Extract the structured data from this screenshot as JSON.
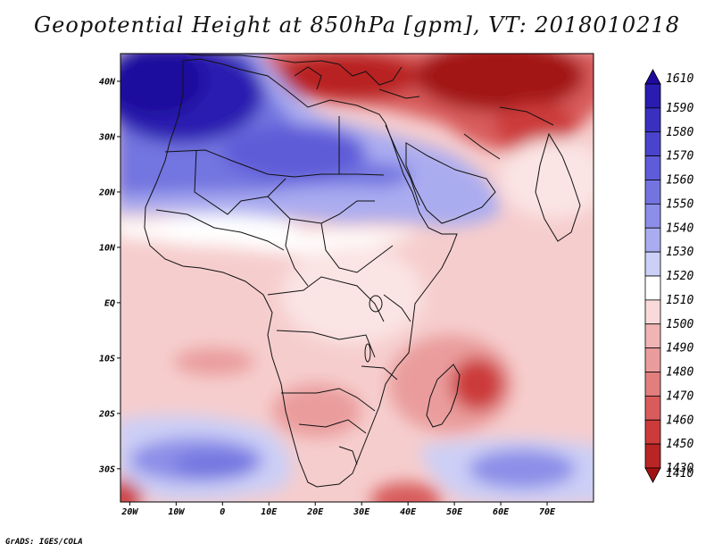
{
  "title": "Geopotential Height at 850hPa [gpm], VT: 2018010218",
  "credit": "GrADS: IGES/COLA",
  "map": {
    "region": "Africa",
    "projection": "lat-lon",
    "lon_range": [
      -22,
      80
    ],
    "lat_range": [
      -36,
      45
    ]
  },
  "axes": {
    "lat_ticks": [
      {
        "value": 40,
        "label": "40N"
      },
      {
        "value": 30,
        "label": "30N"
      },
      {
        "value": 20,
        "label": "20N"
      },
      {
        "value": 10,
        "label": "10N"
      },
      {
        "value": 0,
        "label": "EQ"
      },
      {
        "value": -10,
        "label": "10S"
      },
      {
        "value": -20,
        "label": "20S"
      },
      {
        "value": -30,
        "label": "30S"
      }
    ],
    "lon_ticks": [
      {
        "value": -20,
        "label": "20W"
      },
      {
        "value": -10,
        "label": "10W"
      },
      {
        "value": 0,
        "label": "0"
      },
      {
        "value": 10,
        "label": "10E"
      },
      {
        "value": 20,
        "label": "20E"
      },
      {
        "value": 30,
        "label": "30E"
      },
      {
        "value": 40,
        "label": "40E"
      },
      {
        "value": 50,
        "label": "50E"
      },
      {
        "value": 60,
        "label": "60E"
      },
      {
        "value": 70,
        "label": "70E"
      }
    ]
  },
  "colorbar": {
    "levels": [
      {
        "label": "1610",
        "color": "#1e0a9e"
      },
      {
        "label": "1590",
        "color": "#2a1cb0"
      },
      {
        "label": "1580",
        "color": "#3a30c0"
      },
      {
        "label": "1570",
        "color": "#4a44cc"
      },
      {
        "label": "1560",
        "color": "#5e5cd8"
      },
      {
        "label": "1550",
        "color": "#7374e0"
      },
      {
        "label": "1540",
        "color": "#8c8ee8"
      },
      {
        "label": "1530",
        "color": "#aaacf0"
      },
      {
        "label": "1520",
        "color": "#cccff6"
      },
      {
        "label": "1510",
        "color": "#ffffff"
      },
      {
        "label": "1500",
        "color": "#f9d9d9"
      },
      {
        "label": "1490",
        "color": "#f1b4b4"
      },
      {
        "label": "1480",
        "color": "#ea9c9c"
      },
      {
        "label": "1470",
        "color": "#e27e7e"
      },
      {
        "label": "1460",
        "color": "#d85c5c"
      },
      {
        "label": "1450",
        "color": "#cc3b3b"
      },
      {
        "label": "1430",
        "color": "#b92424"
      },
      {
        "label": "1410",
        "color": "#a31212"
      }
    ]
  },
  "field": {
    "units": "gpm",
    "background_level": "1500",
    "features": [
      {
        "name": "saharan-high",
        "lon": -18,
        "lat": 36,
        "value": 1610
      },
      {
        "name": "subtropical-high-band",
        "lon": 15,
        "lat": 24,
        "value": 1560
      },
      {
        "name": "mediterranean-low",
        "lon": 35,
        "lat": 40,
        "value": 1430
      },
      {
        "name": "iran-low",
        "lon": 55,
        "lat": 37,
        "value": 1420
      },
      {
        "name": "mozambique-channel-low",
        "lon": 55,
        "lat": -16,
        "value": 1450
      },
      {
        "name": "southern-ocean-high",
        "lon": 5,
        "lat": -29,
        "value": 1550
      },
      {
        "name": "indian-ocean-high",
        "lon": 60,
        "lat": -30,
        "value": 1550
      }
    ]
  }
}
